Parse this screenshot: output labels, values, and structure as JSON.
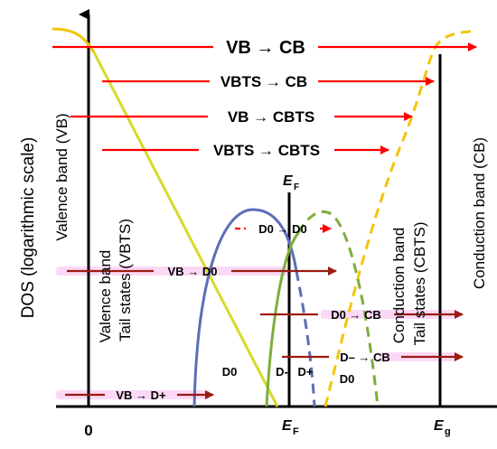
{
  "axes": {
    "y_label": "DOS  (logarithmic scale)",
    "x_zero": "0",
    "x_fermi": "E",
    "x_fermi_sub": "F",
    "x_gap": "E",
    "x_gap_sub": "g",
    "fermi_top": "E",
    "fermi_top_sub": "F"
  },
  "band_labels": {
    "valence_band": "Valence band (VB)",
    "valence_tail_1": "Valence band",
    "valence_tail_2": "Tail states (VBTS)",
    "conduction_tail_1": "Conduction band",
    "conduction_tail_2": "Tail states (CBTS)",
    "conduction_band": "Conduction band (CB)"
  },
  "transitions": {
    "vb_cb": "VB → CB",
    "vbts_cb": "VBTS → CB",
    "vb_cbts": "VB → CBTS",
    "vbts_cbts": "VBTS → CBTS",
    "d0_d0": "D0 → D0",
    "vb_d0": "VB → D0",
    "d0_cb": "D0 → CB",
    "dminus_cb": "D– → CB",
    "vb_dplus": "VB → D+"
  },
  "state_labels": {
    "d0_left": "D0",
    "d_minus": "D-",
    "d_plus": "D+",
    "d0_right": "D0"
  },
  "colors": {
    "red_arrow": "#ff0000",
    "brown_arrow": "#9a1c10",
    "pink_glow": "#f7b9ef",
    "valence_curve": "#f2c40c",
    "valence_tail_line": "#d9d92a",
    "conduction_curve": "#f2c40c",
    "blue_curve": "#5b6fb5",
    "green_curve": "#7fad3a"
  }
}
